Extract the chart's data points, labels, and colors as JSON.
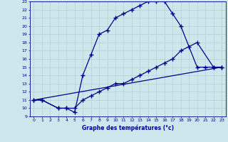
{
  "xlabel": "Graphe des températures (°c)",
  "xlim": [
    -0.5,
    23.5
  ],
  "ylim": [
    9,
    23
  ],
  "xticks": [
    0,
    1,
    2,
    3,
    4,
    5,
    6,
    7,
    8,
    9,
    10,
    11,
    12,
    13,
    14,
    15,
    16,
    17,
    18,
    19,
    20,
    21,
    22,
    23
  ],
  "yticks": [
    9,
    10,
    11,
    12,
    13,
    14,
    15,
    16,
    17,
    18,
    19,
    20,
    21,
    22,
    23
  ],
  "bg_color": "#cde8ed",
  "grid_color": "#aacccc",
  "line_color": "#00008b",
  "curve1_x": [
    0,
    1,
    3,
    4,
    5,
    6,
    7,
    8,
    9,
    10,
    11,
    12,
    13,
    14,
    15,
    16,
    17,
    18,
    20,
    21,
    22,
    23
  ],
  "curve1_y": [
    11,
    11,
    10,
    10,
    9.5,
    14,
    16.5,
    19,
    19.5,
    21,
    21.5,
    22,
    22.5,
    23,
    23,
    23,
    21.5,
    20,
    15,
    15,
    15,
    15
  ],
  "curve2_x": [
    0,
    1,
    3,
    4,
    5,
    6,
    7,
    8,
    9,
    10,
    11,
    12,
    13,
    14,
    15,
    16,
    17,
    18,
    19,
    20,
    22,
    23
  ],
  "curve2_y": [
    11,
    11,
    10,
    10,
    10,
    11,
    11.5,
    12,
    12.5,
    13,
    13,
    13.5,
    14,
    14.5,
    15,
    15.5,
    16,
    17,
    17.5,
    18,
    15,
    15
  ],
  "curve3_x": [
    0,
    23
  ],
  "curve3_y": [
    11,
    15
  ],
  "marker": "+",
  "markersize": 4,
  "linewidth": 0.9,
  "tick_fontsize": 4.5,
  "xlabel_fontsize": 5.5
}
